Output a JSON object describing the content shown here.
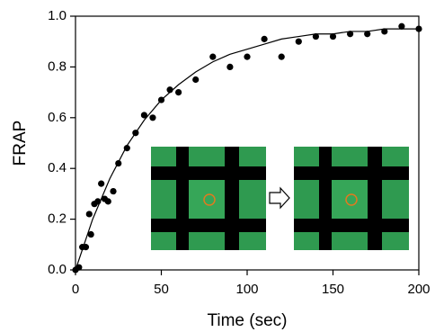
{
  "chart_data": {
    "type": "scatter",
    "x_label": "Time (sec)",
    "y_label": "FRAP",
    "xlim": [
      0,
      200
    ],
    "xticks": [
      0,
      50,
      100,
      150,
      200
    ],
    "ylim": [
      0,
      1.0
    ],
    "yticks": [
      {
        "value": 0,
        "label": "0.0"
      },
      {
        "value": 0.2,
        "label": "0.2"
      },
      {
        "value": 0.4,
        "label": "0.4"
      },
      {
        "value": 0.6,
        "label": "0.6"
      },
      {
        "value": 0.8,
        "label": "0.8"
      },
      {
        "value": 1.0,
        "label": "1.0"
      }
    ],
    "series": [
      {
        "type": "scatter",
        "color": "#000000",
        "x": [
          0,
          2,
          4,
          6,
          8,
          9,
          11,
          13,
          15,
          17,
          19,
          22,
          25,
          30,
          35,
          40,
          45,
          50,
          55,
          60,
          70,
          80,
          90,
          100,
          110,
          120,
          130,
          140,
          150,
          160,
          170,
          180,
          190,
          200
        ],
        "values": [
          0.0,
          0.01,
          0.09,
          0.09,
          0.22,
          0.14,
          0.26,
          0.27,
          0.34,
          0.28,
          0.27,
          0.31,
          0.42,
          0.48,
          0.54,
          0.61,
          0.6,
          0.67,
          0.71,
          0.7,
          0.75,
          0.84,
          0.8,
          0.84,
          0.91,
          0.84,
          0.9,
          0.92,
          0.92,
          0.93,
          0.93,
          0.94,
          0.96,
          0.95
        ]
      },
      {
        "type": "line",
        "color": "#000000",
        "x": [
          0,
          10,
          20,
          30,
          40,
          50,
          60,
          70,
          80,
          90,
          100,
          110,
          120,
          130,
          140,
          150,
          160,
          170,
          180,
          190,
          200
        ],
        "values": [
          0,
          0.2,
          0.36,
          0.49,
          0.59,
          0.67,
          0.73,
          0.78,
          0.82,
          0.85,
          0.87,
          0.89,
          0.91,
          0.92,
          0.93,
          0.93,
          0.94,
          0.94,
          0.95,
          0.95,
          0.95
        ]
      }
    ]
  }
}
